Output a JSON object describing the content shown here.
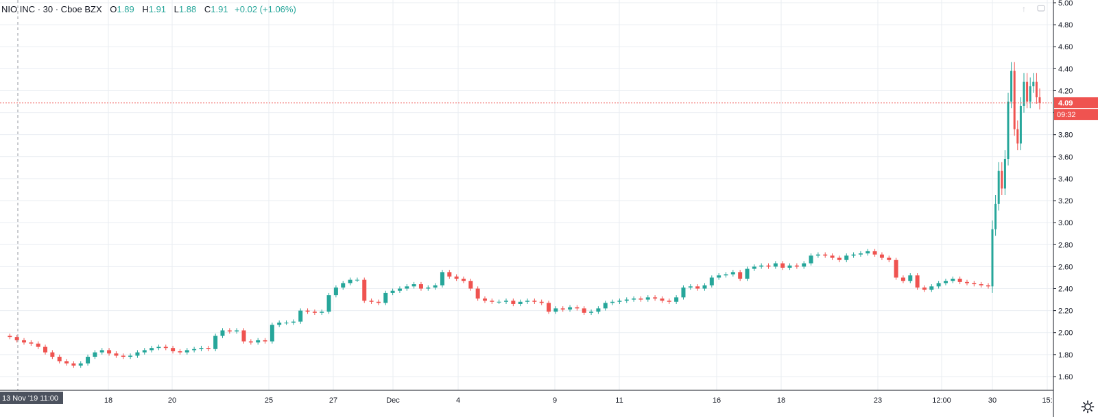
{
  "legend": {
    "symbol": "NIO INC · 30 · Cboe BZX",
    "open_label": "O",
    "open": "1.89",
    "high_label": "H",
    "high": "1.91",
    "low_label": "L",
    "low": "1.88",
    "close_label": "C",
    "close": "1.91",
    "change": "+0.02 (+1.06%)"
  },
  "top_buttons": {
    "scroll_up_icon": "arrow-up-icon",
    "fullscreen_icon": "fullscreen-icon"
  },
  "settings_icon": "gear-icon",
  "colors": {
    "up": "#26a69a",
    "down": "#ef5350",
    "grid": "#e9edf2",
    "axis_text": "#131722",
    "price_line": "#ef5350"
  },
  "chart_data": {
    "type": "candlestick",
    "title": "NIO INC · 30 · Cboe BZX",
    "timeframe": "30",
    "y_axis": {
      "min": 1.5,
      "max": 5.0,
      "ticks": [
        "1.60",
        "1.80",
        "2.00",
        "2.20",
        "2.40",
        "2.60",
        "2.80",
        "3.00",
        "3.20",
        "3.40",
        "3.60",
        "3.80",
        "4.00",
        "4.20",
        "4.40",
        "4.60",
        "4.80",
        "5.00"
      ]
    },
    "x_axis": {
      "ticks": [
        "18",
        "20",
        "25",
        "27",
        "Dec",
        "4",
        "9",
        "11",
        "16",
        "18",
        "23",
        "12:00",
        "30",
        "15:"
      ]
    },
    "crosshair_label": "13 Nov '19   11:00",
    "last_price": "4.09",
    "countdown": "09:32",
    "price_path": [
      1.97,
      1.96,
      1.93,
      1.91,
      1.9,
      1.87,
      1.82,
      1.78,
      1.74,
      1.72,
      1.7,
      1.72,
      1.78,
      1.82,
      1.84,
      1.81,
      1.79,
      1.78,
      1.79,
      1.82,
      1.84,
      1.86,
      1.87,
      1.86,
      1.83,
      1.82,
      1.84,
      1.85,
      1.86,
      1.85,
      1.97,
      2.02,
      2.01,
      2.02,
      1.92,
      1.91,
      1.93,
      1.92,
      2.07,
      2.09,
      2.09,
      2.1,
      2.2,
      2.19,
      2.18,
      2.19,
      2.34,
      2.41,
      2.45,
      2.48,
      2.48,
      2.29,
      2.28,
      2.27,
      2.36,
      2.38,
      2.4,
      2.42,
      2.44,
      2.4,
      2.41,
      2.43,
      2.55,
      2.51,
      2.49,
      2.47,
      2.4,
      2.31,
      2.29,
      2.28,
      2.28,
      2.29,
      2.26,
      2.28,
      2.29,
      2.28,
      2.27,
      2.19,
      2.22,
      2.21,
      2.23,
      2.22,
      2.18,
      2.19,
      2.22,
      2.27,
      2.28,
      2.29,
      2.3,
      2.31,
      2.3,
      2.32,
      2.31,
      2.29,
      2.28,
      2.32,
      2.41,
      2.42,
      2.4,
      2.43,
      2.5,
      2.52,
      2.53,
      2.55,
      2.49,
      2.58,
      2.6,
      2.61,
      2.6,
      2.63,
      2.59,
      2.61,
      2.6,
      2.63,
      2.7,
      2.71,
      2.7,
      2.68,
      2.66,
      2.7,
      2.71,
      2.72,
      2.74,
      2.71,
      2.68,
      2.66,
      2.5,
      2.47,
      2.52,
      2.41,
      2.39,
      2.42,
      2.45,
      2.47,
      2.49,
      2.46,
      2.45,
      2.44,
      2.43,
      2.42,
      2.94,
      3.17,
      3.47,
      3.31,
      3.58,
      4.1,
      4.38,
      3.85,
      3.72,
      4.06,
      4.28,
      4.1,
      4.24,
      4.28,
      4.14,
      4.09
    ]
  }
}
